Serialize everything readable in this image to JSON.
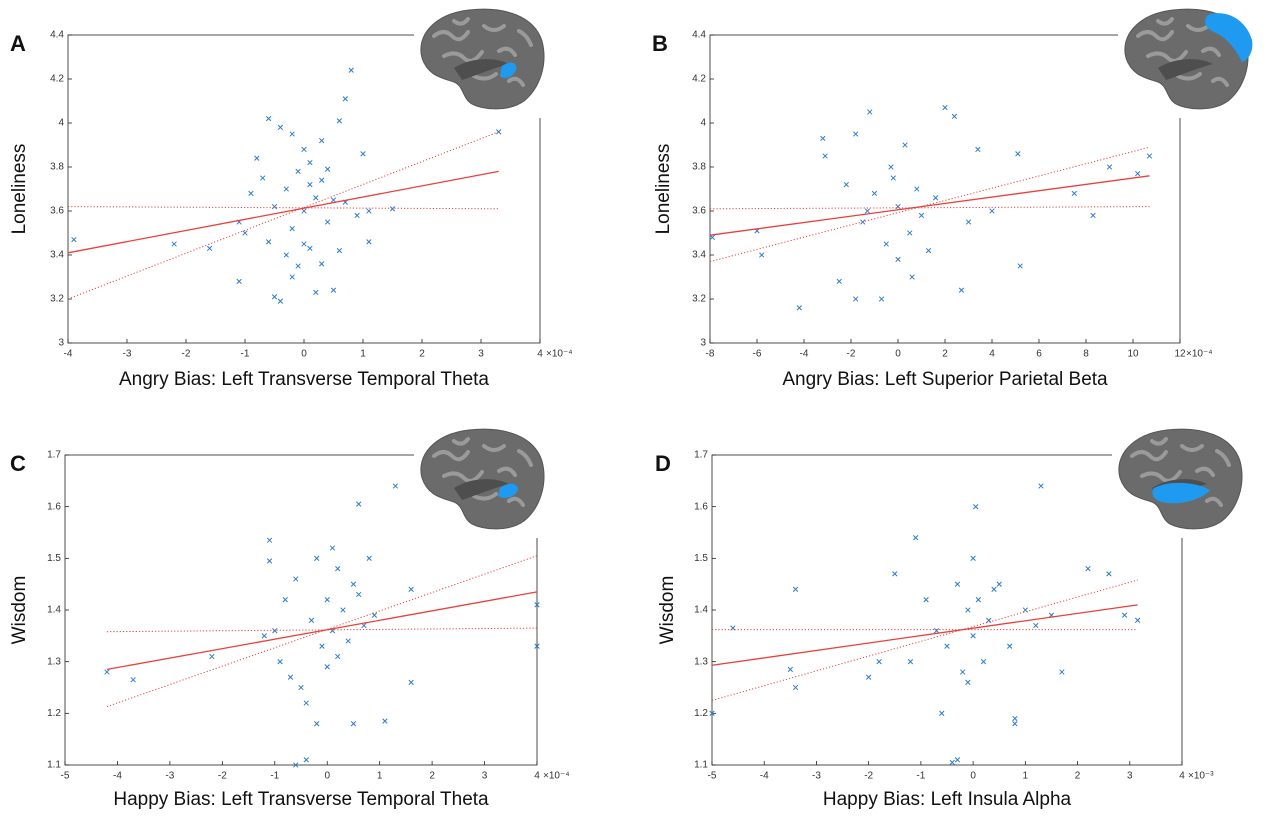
{
  "chart_data": [
    {
      "type": "scatter",
      "panel": "A",
      "xlabel": "Angry Bias: Left Transverse Temporal Theta",
      "ylabel": "Loneliness",
      "x_offset_label": "×10⁻⁴",
      "xlim": [
        -4,
        4
      ],
      "xticks": [
        -4,
        -3,
        -2,
        -1,
        0,
        1,
        2,
        3,
        4
      ],
      "ylim": [
        3,
        4.4
      ],
      "yticks": [
        3,
        3.2,
        3.4,
        3.6,
        3.8,
        4,
        4.2,
        4.4
      ],
      "series": [
        {
          "color": "#2b7cc9",
          "marker": "x",
          "x": [
            -3.9,
            -2.2,
            -1.6,
            -1.1,
            -1.1,
            -1.0,
            -0.8,
            -0.7,
            -0.6,
            -0.6,
            -0.5,
            -0.5,
            -0.4,
            -0.4,
            -0.3,
            -0.3,
            -0.2,
            -0.2,
            -0.1,
            -0.1,
            0,
            0,
            0.1,
            0.1,
            0.1,
            0.2,
            0.2,
            0.3,
            0.3,
            0.4,
            0.4,
            0.5,
            0.5,
            0.6,
            0.6,
            0.7,
            0.7,
            0.8,
            0.9,
            1.0,
            1.1,
            1.1,
            1.5,
            3.3,
            -0.9,
            0.0,
            0.3,
            -0.2
          ],
          "values": [
            3.47,
            3.45,
            3.43,
            3.28,
            3.55,
            3.5,
            3.84,
            3.75,
            4.02,
            3.46,
            3.21,
            3.62,
            3.19,
            3.98,
            3.4,
            3.7,
            3.52,
            3.95,
            3.35,
            3.78,
            3.88,
            3.6,
            3.43,
            3.72,
            3.82,
            3.23,
            3.66,
            3.36,
            3.74,
            3.55,
            3.79,
            3.24,
            3.65,
            4.01,
            3.42,
            4.11,
            3.64,
            4.24,
            3.58,
            3.86,
            3.46,
            3.6,
            3.61,
            3.96,
            3.68,
            3.45,
            3.92,
            3.3
          ]
        },
        {
          "color": "#e8413c",
          "style": "solid",
          "x": [
            -4,
            3.3
          ],
          "values": [
            3.41,
            3.78
          ]
        },
        {
          "color": "#e8413c",
          "style": "dotted",
          "x": [
            -4,
            3.3
          ],
          "values": [
            3.62,
            3.61
          ]
        },
        {
          "color": "#e8413c",
          "style": "dotted",
          "x": [
            -4,
            3.3
          ],
          "values": [
            3.2,
            3.96
          ]
        }
      ]
    },
    {
      "type": "scatter",
      "panel": "B",
      "xlabel": "Angry Bias: Left Superior Parietal Beta",
      "ylabel": "Loneliness",
      "x_offset_label": "×10⁻⁴",
      "xlim": [
        -8,
        12
      ],
      "xticks": [
        -8,
        -6,
        -4,
        -2,
        0,
        2,
        4,
        6,
        8,
        10,
        12
      ],
      "ylim": [
        3,
        4.4
      ],
      "yticks": [
        3,
        3.2,
        3.4,
        3.6,
        3.8,
        4,
        4.2,
        4.4
      ],
      "series": [
        {
          "color": "#2b7cc9",
          "marker": "x",
          "x": [
            -7.9,
            -6,
            -5.8,
            -4.2,
            -3.2,
            -3.1,
            -2.5,
            -1.8,
            -1.2,
            -1.8,
            -0.7,
            -2.2,
            -1.5,
            -1,
            -0.5,
            -0.3,
            0,
            0,
            0.3,
            0.5,
            0.8,
            1,
            1.3,
            1.6,
            2,
            2.4,
            2.7,
            3,
            3.4,
            4,
            5.1,
            5.2,
            7.5,
            8.3,
            9,
            10.2,
            10.7,
            -0.2,
            0.6,
            -1.3
          ],
          "values": [
            3.48,
            3.51,
            3.4,
            3.16,
            3.93,
            3.85,
            3.28,
            3.95,
            4.05,
            3.2,
            3.2,
            3.72,
            3.55,
            3.68,
            3.45,
            3.8,
            3.62,
            3.38,
            3.9,
            3.5,
            3.7,
            3.58,
            3.42,
            3.66,
            4.07,
            4.03,
            3.24,
            3.55,
            3.88,
            3.6,
            3.86,
            3.35,
            3.68,
            3.58,
            3.8,
            3.77,
            3.85,
            3.75,
            3.3,
            3.6
          ]
        },
        {
          "color": "#e8413c",
          "style": "solid",
          "x": [
            -8,
            10.7
          ],
          "values": [
            3.49,
            3.76
          ]
        },
        {
          "color": "#e8413c",
          "style": "dotted",
          "x": [
            -8,
            10.7
          ],
          "values": [
            3.61,
            3.62
          ]
        },
        {
          "color": "#e8413c",
          "style": "dotted",
          "x": [
            -8,
            10.7
          ],
          "values": [
            3.37,
            3.89
          ]
        }
      ]
    },
    {
      "type": "scatter",
      "panel": "C",
      "xlabel": "Happy Bias: Left Transverse Temporal Theta",
      "ylabel": "Wisdom",
      "x_offset_label": "×10⁻⁴",
      "xlim": [
        -5,
        4
      ],
      "xticks": [
        -5,
        -4,
        -3,
        -2,
        -1,
        0,
        1,
        2,
        3,
        4
      ],
      "ylim": [
        1.1,
        1.7
      ],
      "yticks": [
        1.1,
        1.2,
        1.3,
        1.4,
        1.5,
        1.6,
        1.7
      ],
      "series": [
        {
          "color": "#2b7cc9",
          "marker": "x",
          "x": [
            -4.2,
            -3.7,
            -2.2,
            -1.1,
            -1.1,
            -0.6,
            -0.4,
            0.6,
            1.3,
            1.1,
            1.6,
            1.6,
            4,
            4,
            0.5,
            -0.2,
            -1.2,
            -0.9,
            -0.8,
            -0.6,
            -0.5,
            -0.3,
            -0.2,
            -0.1,
            0,
            0,
            0.1,
            0.2,
            0.3,
            0.4,
            0.5,
            0.7,
            0.8,
            0.9,
            -0.4,
            0.2,
            -0.7,
            0.6,
            -1.0,
            0.1
          ],
          "values": [
            1.28,
            1.265,
            1.31,
            1.535,
            1.495,
            1.1,
            1.11,
            1.605,
            1.64,
            1.185,
            1.26,
            1.44,
            1.33,
            1.41,
            1.18,
            1.18,
            1.35,
            1.3,
            1.42,
            1.46,
            1.25,
            1.38,
            1.5,
            1.33,
            1.42,
            1.29,
            1.36,
            1.48,
            1.4,
            1.34,
            1.45,
            1.37,
            1.5,
            1.39,
            1.22,
            1.31,
            1.27,
            1.43,
            1.36,
            1.52
          ]
        },
        {
          "color": "#e8413c",
          "style": "solid",
          "x": [
            -4.2,
            4
          ],
          "values": [
            1.285,
            1.435
          ]
        },
        {
          "color": "#e8413c",
          "style": "dotted",
          "x": [
            -4.2,
            4
          ],
          "values": [
            1.358,
            1.365
          ]
        },
        {
          "color": "#e8413c",
          "style": "dotted",
          "x": [
            -4.2,
            4
          ],
          "values": [
            1.213,
            1.505
          ]
        }
      ]
    },
    {
      "type": "scatter",
      "panel": "D",
      "xlabel": "Happy Bias: Left Insula Alpha",
      "ylabel": "Wisdom",
      "x_offset_label": "×10⁻³",
      "xlim": [
        -5,
        4
      ],
      "xticks": [
        -5,
        -4,
        -3,
        -2,
        -1,
        0,
        1,
        2,
        3,
        4
      ],
      "ylim": [
        1.1,
        1.7
      ],
      "yticks": [
        1.1,
        1.2,
        1.3,
        1.4,
        1.5,
        1.6,
        1.7
      ],
      "series": [
        {
          "color": "#2b7cc9",
          "marker": "x",
          "x": [
            -5,
            -4.6,
            -3.4,
            -3.4,
            -3.5,
            -1.1,
            0.05,
            1.3,
            -0.4,
            -0.3,
            0.8,
            0.8,
            2.6,
            3.15,
            2.9,
            -2,
            1.7,
            -1.5,
            -1.2,
            -0.9,
            -0.7,
            -0.5,
            -0.3,
            -0.2,
            -0.1,
            0,
            0,
            0.1,
            0.2,
            0.3,
            0.5,
            0.7,
            1,
            1.2,
            2.2,
            -0.6,
            0.4,
            -1.8,
            1.5,
            -0.1
          ],
          "values": [
            1.2,
            1.365,
            1.44,
            1.25,
            1.285,
            1.54,
            1.6,
            1.64,
            1.105,
            1.11,
            1.18,
            1.19,
            1.47,
            1.38,
            1.39,
            1.27,
            1.28,
            1.47,
            1.3,
            1.42,
            1.36,
            1.33,
            1.45,
            1.28,
            1.4,
            1.5,
            1.35,
            1.42,
            1.3,
            1.38,
            1.45,
            1.33,
            1.4,
            1.37,
            1.48,
            1.2,
            1.44,
            1.3,
            1.39,
            1.26
          ]
        },
        {
          "color": "#e8413c",
          "style": "solid",
          "x": [
            -5,
            3.15
          ],
          "values": [
            1.293,
            1.41
          ]
        },
        {
          "color": "#e8413c",
          "style": "dotted",
          "x": [
            -5,
            3.15
          ],
          "values": [
            1.362,
            1.362
          ]
        },
        {
          "color": "#e8413c",
          "style": "dotted",
          "x": [
            -5,
            3.15
          ],
          "values": [
            1.225,
            1.458
          ]
        }
      ]
    }
  ]
}
